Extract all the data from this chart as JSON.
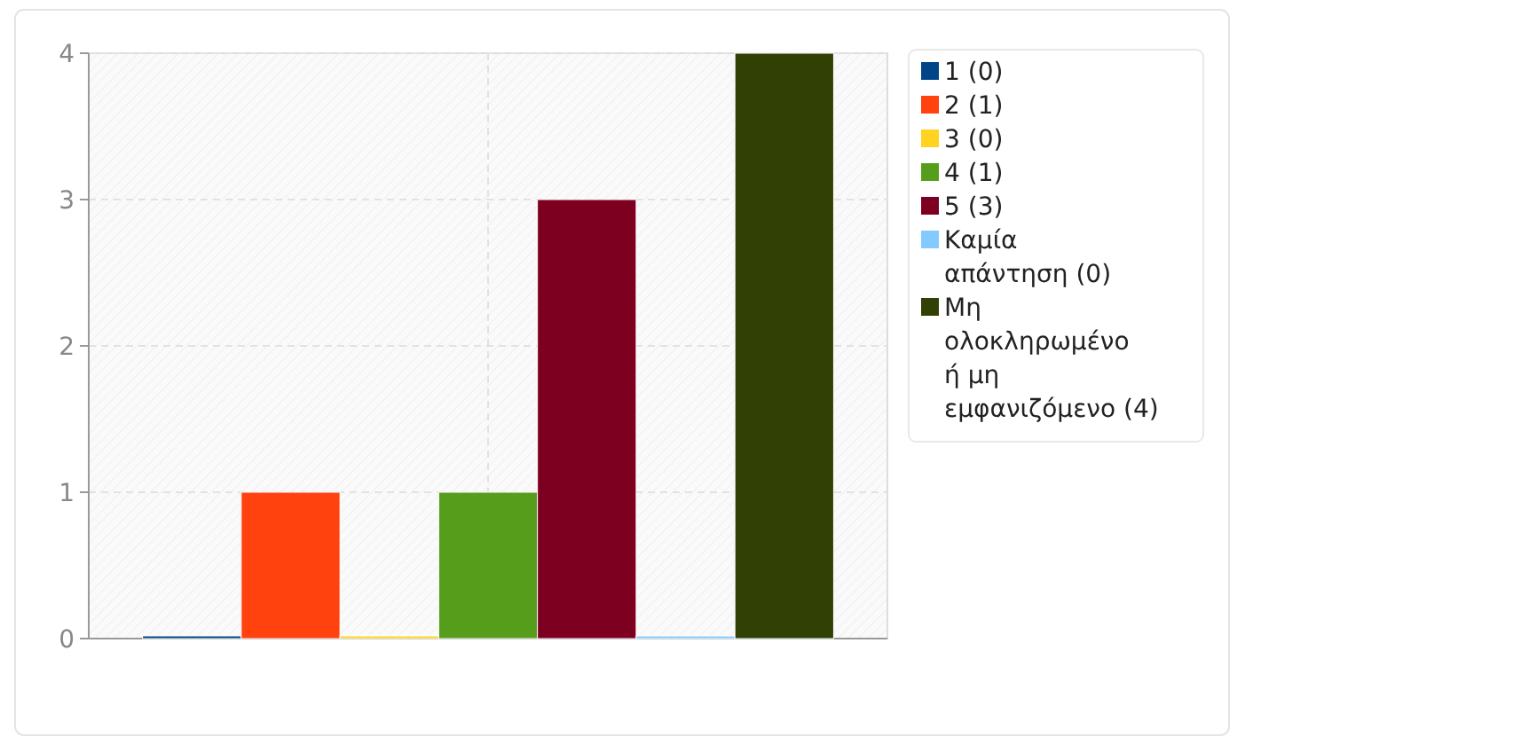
{
  "chart_data": {
    "type": "bar",
    "categories": [
      null
    ],
    "series": [
      {
        "name": "1 (0)",
        "color": "#004586",
        "values": [
          0
        ]
      },
      {
        "name": "2 (1)",
        "color": "#ff420e",
        "values": [
          1
        ]
      },
      {
        "name": "3 (0)",
        "color": "#ffd320",
        "values": [
          0
        ]
      },
      {
        "name": "4 (1)",
        "color": "#579d1c",
        "values": [
          1
        ]
      },
      {
        "name": "5 (3)",
        "color": "#7e0021",
        "values": [
          3
        ]
      },
      {
        "name": "Καμία απάντηση (0)",
        "color": "#83caff",
        "values": [
          0
        ]
      },
      {
        "name": "Μη ολοκληρωμένο ή μη εμφανιζόμενο (4)",
        "color": "#314004",
        "values": [
          4
        ]
      }
    ],
    "ylim": [
      0,
      4
    ],
    "yticks": [
      0,
      1,
      2,
      3,
      4
    ],
    "grid": true,
    "legend": "right"
  }
}
